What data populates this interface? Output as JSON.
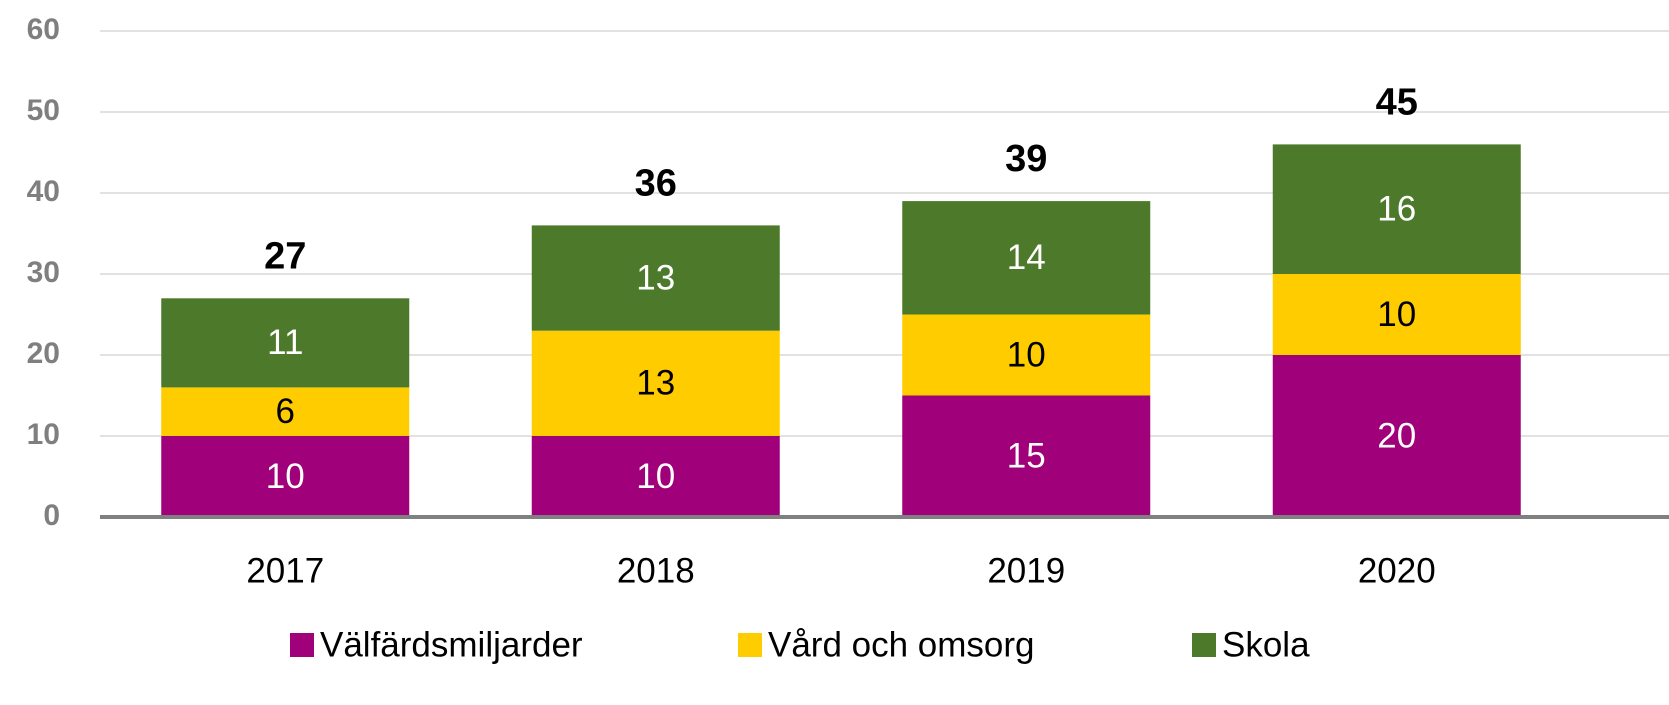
{
  "chart_data": {
    "type": "stacked_bar",
    "categories": [
      "2017",
      "2018",
      "2019",
      "2020"
    ],
    "series": [
      {
        "name": "Välfärdsmiljarder",
        "color": "#a0007a",
        "values": [
          10,
          10,
          15,
          20
        ]
      },
      {
        "name": "Vård och omsorg",
        "color": "#ffcc00",
        "values": [
          6,
          13,
          10,
          10
        ]
      },
      {
        "name": "Skola",
        "color": "#4d7a2a",
        "values": [
          11,
          13,
          14,
          16
        ]
      }
    ],
    "totals": [
      27,
      36,
      39,
      45
    ],
    "ylim": [
      0,
      60
    ],
    "yticks": [
      0,
      10,
      20,
      30,
      40,
      50,
      60
    ],
    "grid": true,
    "legend": "bottom"
  }
}
